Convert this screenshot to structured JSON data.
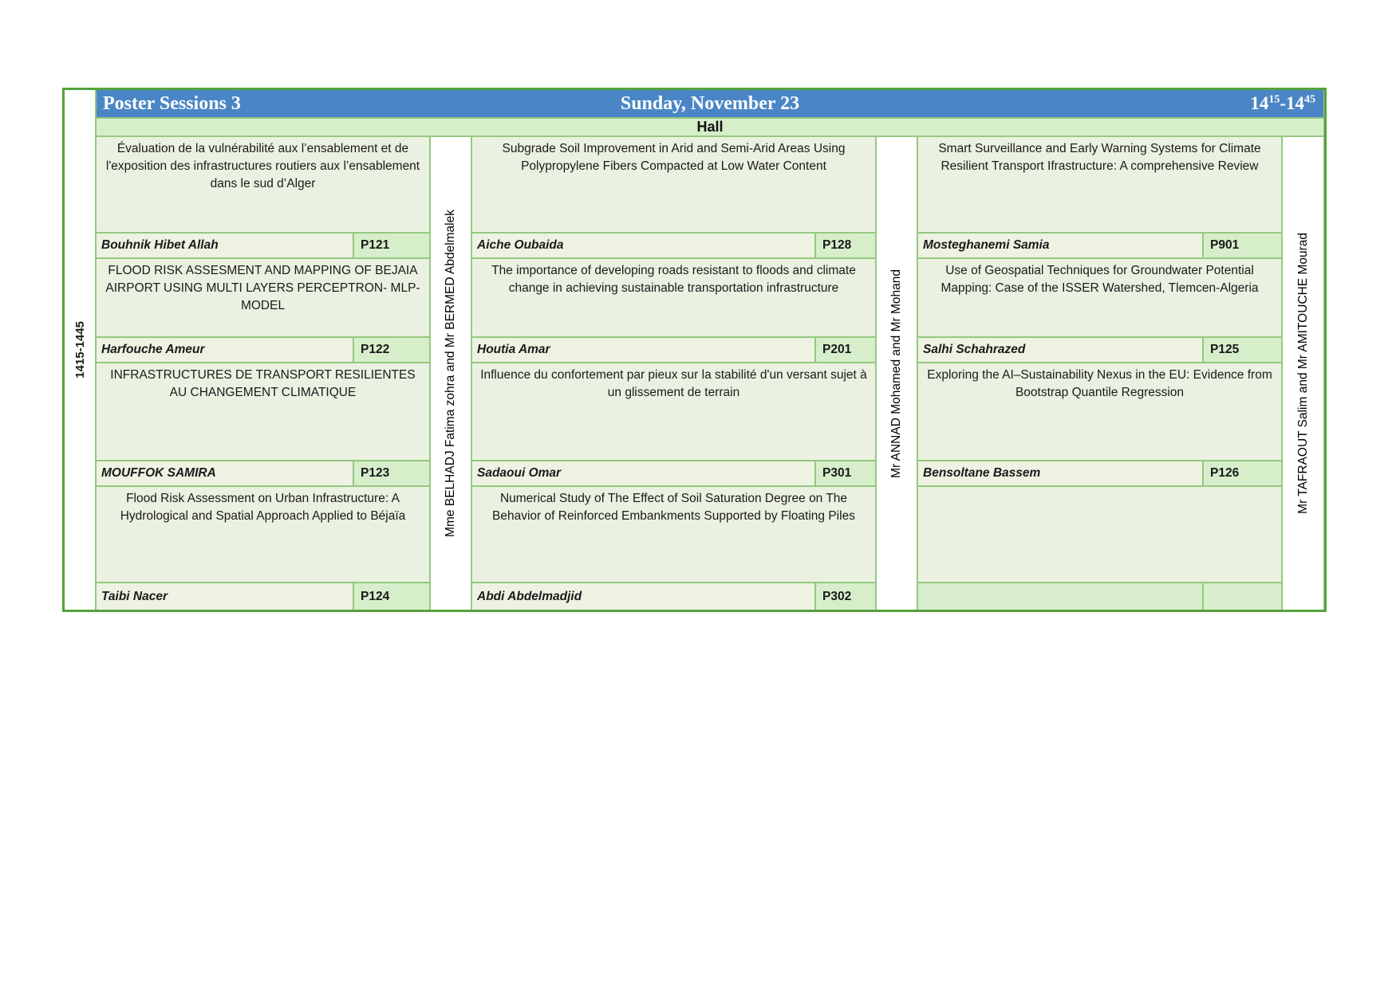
{
  "header": {
    "session": "Poster Sessions 3",
    "date": "Sunday, November 23",
    "time": {
      "h1": "14",
      "m1": "15",
      "sep": "-",
      "h2": "14",
      "m2": "45"
    }
  },
  "hall_label": "Hall",
  "time_slot": "1415-1445",
  "chairs": [
    "Mme BELHADJ Fatima zohra and Mr BERMED Abdelmalek",
    "Mr ANNAD Mohamed and Mr Mohand",
    "Mr TAFRAOUT Salim and Mr AMITOUCHE Mourad"
  ],
  "columns": [
    {
      "entries": [
        {
          "title": "Évaluation de la vulnérabilité aux l’ensablement et de l'exposition des infrastructures routiers aux l’ensablement dans le sud d’Alger",
          "author": "Bouhnik Hibet Allah",
          "code": "P121"
        },
        {
          "title": "FLOOD RISK ASSESMENT AND MAPPING OF BEJAIA AIRPORT USING MULTI LAYERS PERCEPTRON- MLP-MODEL",
          "author": "Harfouche Ameur",
          "code": "P122"
        },
        {
          "title": "INFRASTRUCTURES DE TRANSPORT RESILIENTES AU CHANGEMENT CLIMATIQUE",
          "author": "MOUFFOK SAMIRA",
          "code": "P123"
        },
        {
          "title": "Flood Risk Assessment on Urban Infrastructure: A Hydrological and Spatial Approach Applied to Béjaïa",
          "author": "Taibi Nacer",
          "code": "P124"
        }
      ]
    },
    {
      "entries": [
        {
          "title": "Subgrade Soil Improvement in Arid and Semi-Arid Areas Using Polypropylene Fibers Compacted at Low Water Content",
          "author": "Aiche Oubaida",
          "code": "P128"
        },
        {
          "title": "The importance of developing roads resistant to floods and climate change in achieving sustainable transportation infrastructure",
          "author": "Houtia Amar",
          "code": "P201"
        },
        {
          "title": "Influence du confortement par pieux sur la stabilité d'un versant sujet à un glissement de terrain",
          "author": "Sadaoui Omar",
          "code": "P301"
        },
        {
          "title": "Numerical Study of The Effect of Soil Saturation Degree on The Behavior of Reinforced Embankments Supported by Floating Piles",
          "author": "Abdi Abdelmadjid",
          "code": "P302"
        }
      ]
    },
    {
      "entries": [
        {
          "title": "Smart Surveillance and Early Warning Systems for Climate Resilient Transport Ifrastructure: A comprehensive Review",
          "author": "Mosteghanemi Samia",
          "code": "P901"
        },
        {
          "title": "Use of Geospatial Techniques for Groundwater Potential Mapping: Case of the ISSER Watershed, Tlemcen-Algeria",
          "author": "Salhi Schahrazed",
          "code": "P125"
        },
        {
          "title": "Exploring the AI–Sustainability Nexus in the EU: Evidence from Bootstrap Quantile Regression",
          "author": "Bensoltane Bassem",
          "code": "P126"
        },
        {
          "title": "",
          "author": "",
          "code": ""
        }
      ]
    }
  ],
  "colors": {
    "header_blue": "#4a86c6",
    "frame_green": "#55a23e",
    "grid_green": "#94c97f",
    "title_cell_bg": "#ebf1e1",
    "author_cell_bg": "#edf2e2",
    "code_cell_bg": "#d7eecb"
  }
}
